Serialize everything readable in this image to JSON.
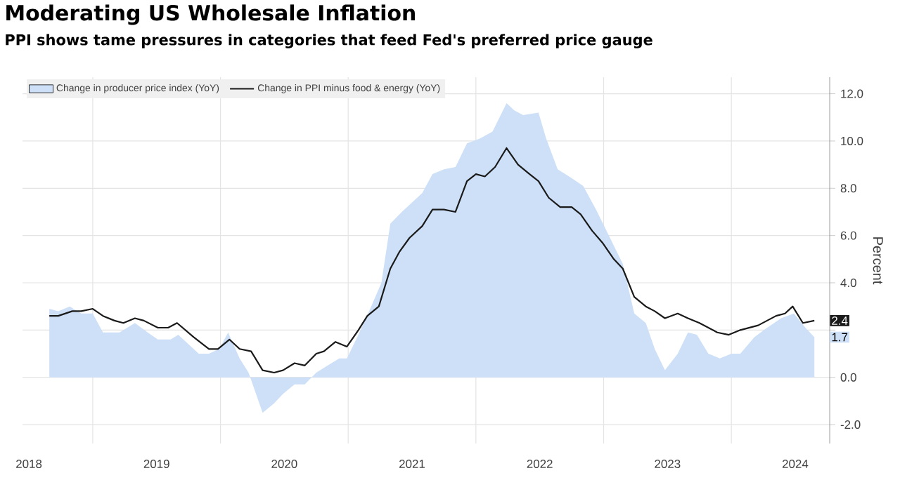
{
  "chart_data": {
    "type": "line",
    "title": "Moderating US Wholesale Inflation",
    "subtitle": "PPI shows tame pressures in categories that feed Fed's preferred price gauge",
    "ylabel": "Percent",
    "xlim": [
      2018.45,
      2024.77
    ],
    "ylim": [
      -2.8,
      12.7
    ],
    "xticks": [
      {
        "value": 2018.5,
        "label": "2018"
      },
      {
        "value": 2019.5,
        "label": "2019"
      },
      {
        "value": 2020.5,
        "label": "2020"
      },
      {
        "value": 2021.5,
        "label": "2021"
      },
      {
        "value": 2022.5,
        "label": "2022"
      },
      {
        "value": 2023.5,
        "label": "2023"
      },
      {
        "value": 2024.5,
        "label": "2024"
      },
      {
        "value": 2019,
        "label": null
      },
      {
        "value": 2020,
        "label": null
      },
      {
        "value": 2021,
        "label": null
      },
      {
        "value": 2022,
        "label": null
      },
      {
        "value": 2023,
        "label": null
      },
      {
        "value": 2024,
        "label": null
      }
    ],
    "yticks": [
      {
        "value": -2,
        "label": "-2.0"
      },
      {
        "value": 0,
        "label": "0.0"
      },
      {
        "value": 2,
        "label": null
      },
      {
        "value": 4,
        "label": "4.0"
      },
      {
        "value": 6,
        "label": "6.0"
      },
      {
        "value": 8,
        "label": "8.0"
      },
      {
        "value": 10,
        "label": "10.0"
      },
      {
        "value": 12,
        "label": "12.0"
      }
    ],
    "grid": true,
    "legend": "top left",
    "series": [
      {
        "name": "Change in producer price index (YoY)",
        "type": "area",
        "color": "#cde0f7",
        "x": [
          2018.66,
          2018.73,
          2018.82,
          2018.91,
          2019.0,
          2019.08,
          2019.21,
          2019.33,
          2019.43,
          2019.51,
          2019.61,
          2019.67,
          2019.83,
          2019.91,
          2019.99,
          2020.06,
          2020.15,
          2020.22,
          2020.33,
          2020.42,
          2020.49,
          2020.58,
          2020.66,
          2020.75,
          2020.84,
          2020.93,
          2020.99,
          2021.08,
          2021.18,
          2021.26,
          2021.33,
          2021.42,
          2021.5,
          2021.58,
          2021.66,
          2021.75,
          2021.84,
          2021.93,
          2022.03,
          2022.13,
          2022.24,
          2022.3,
          2022.37,
          2022.49,
          2022.55,
          2022.64,
          2022.73,
          2022.84,
          2022.94,
          2023.05,
          2023.15,
          2023.24,
          2023.33,
          2023.4,
          2023.48,
          2023.58,
          2023.66,
          2023.73,
          2023.82,
          2023.91,
          2024.0,
          2024.07,
          2024.18,
          2024.28,
          2024.39,
          2024.49,
          2024.58,
          2024.65
        ],
        "values": [
          2.9,
          2.8,
          3.0,
          2.7,
          2.7,
          1.9,
          1.9,
          2.3,
          1.9,
          1.6,
          1.6,
          1.8,
          1.0,
          1.0,
          1.2,
          1.9,
          0.8,
          0.2,
          -1.5,
          -1.1,
          -0.7,
          -0.3,
          -0.3,
          0.2,
          0.5,
          0.8,
          0.8,
          1.8,
          3.0,
          4.0,
          6.5,
          7.0,
          7.4,
          7.8,
          8.6,
          8.8,
          8.9,
          9.9,
          10.1,
          10.4,
          11.6,
          11.3,
          11.1,
          11.2,
          10.1,
          8.8,
          8.5,
          8.1,
          7.1,
          5.9,
          4.8,
          2.7,
          2.3,
          1.2,
          0.3,
          1.0,
          1.9,
          1.8,
          1.0,
          0.8,
          1.0,
          1.0,
          1.7,
          2.1,
          2.5,
          2.7,
          2.1,
          1.7
        ],
        "value_labels": [
          null,
          null,
          null,
          null,
          null,
          null,
          null,
          null,
          null,
          null,
          null,
          null,
          null,
          null,
          null,
          null,
          null,
          null,
          null,
          null,
          null,
          null,
          null,
          null,
          null,
          null,
          null,
          null,
          null,
          null,
          null,
          null,
          null,
          null,
          null,
          null,
          null,
          null,
          null,
          null,
          null,
          null,
          null,
          null,
          null,
          null,
          null,
          null,
          null,
          null,
          null,
          null,
          null,
          null,
          null,
          null,
          null,
          null,
          null,
          null,
          null,
          null,
          null,
          null,
          null,
          null,
          null,
          "1.7"
        ]
      },
      {
        "name": "Change in PPI minus food & energy (YoY)",
        "color": "#1a1a1a",
        "x": [
          2018.66,
          2018.73,
          2018.84,
          2018.91,
          2019.0,
          2019.08,
          2019.17,
          2019.24,
          2019.33,
          2019.4,
          2019.51,
          2019.59,
          2019.66,
          2019.79,
          2019.91,
          2019.98,
          2020.07,
          2020.15,
          2020.24,
          2020.33,
          2020.42,
          2020.49,
          2020.58,
          2020.66,
          2020.75,
          2020.81,
          2020.9,
          2020.99,
          2021.08,
          2021.15,
          2021.24,
          2021.33,
          2021.4,
          2021.48,
          2021.58,
          2021.66,
          2021.75,
          2021.84,
          2021.93,
          2022.0,
          2022.07,
          2022.15,
          2022.24,
          2022.33,
          2022.42,
          2022.49,
          2022.57,
          2022.66,
          2022.75,
          2022.82,
          2022.91,
          2022.99,
          2023.08,
          2023.15,
          2023.24,
          2023.33,
          2023.4,
          2023.48,
          2023.58,
          2023.66,
          2023.75,
          2023.89,
          2023.98,
          2024.07,
          2024.21,
          2024.35,
          2024.42,
          2024.48,
          2024.56,
          2024.65
        ],
        "values": [
          2.6,
          2.6,
          2.8,
          2.8,
          2.9,
          2.6,
          2.4,
          2.3,
          2.5,
          2.4,
          2.1,
          2.1,
          2.3,
          1.7,
          1.2,
          1.2,
          1.6,
          1.2,
          1.1,
          0.3,
          0.2,
          0.3,
          0.6,
          0.5,
          1.0,
          1.1,
          1.5,
          1.3,
          2.0,
          2.6,
          3.0,
          4.6,
          5.3,
          5.9,
          6.4,
          7.1,
          7.1,
          7.0,
          8.3,
          8.6,
          8.5,
          8.9,
          9.7,
          9.0,
          8.6,
          8.3,
          7.6,
          7.2,
          7.2,
          6.9,
          6.2,
          5.7,
          5.0,
          4.6,
          3.4,
          3.0,
          2.8,
          2.5,
          2.7,
          2.5,
          2.3,
          1.9,
          1.8,
          2.0,
          2.2,
          2.6,
          2.7,
          3.0,
          2.3,
          2.4
        ],
        "value_labels": [
          null,
          null,
          null,
          null,
          null,
          null,
          null,
          null,
          null,
          null,
          null,
          null,
          null,
          null,
          null,
          null,
          null,
          null,
          null,
          null,
          null,
          null,
          null,
          null,
          null,
          null,
          null,
          null,
          null,
          null,
          null,
          null,
          null,
          null,
          null,
          null,
          null,
          null,
          null,
          null,
          null,
          null,
          null,
          null,
          null,
          null,
          null,
          null,
          null,
          null,
          null,
          null,
          null,
          null,
          null,
          null,
          null,
          null,
          null,
          null,
          null,
          null,
          null,
          null,
          null,
          null,
          null,
          null,
          null,
          "2.4"
        ]
      }
    ]
  }
}
